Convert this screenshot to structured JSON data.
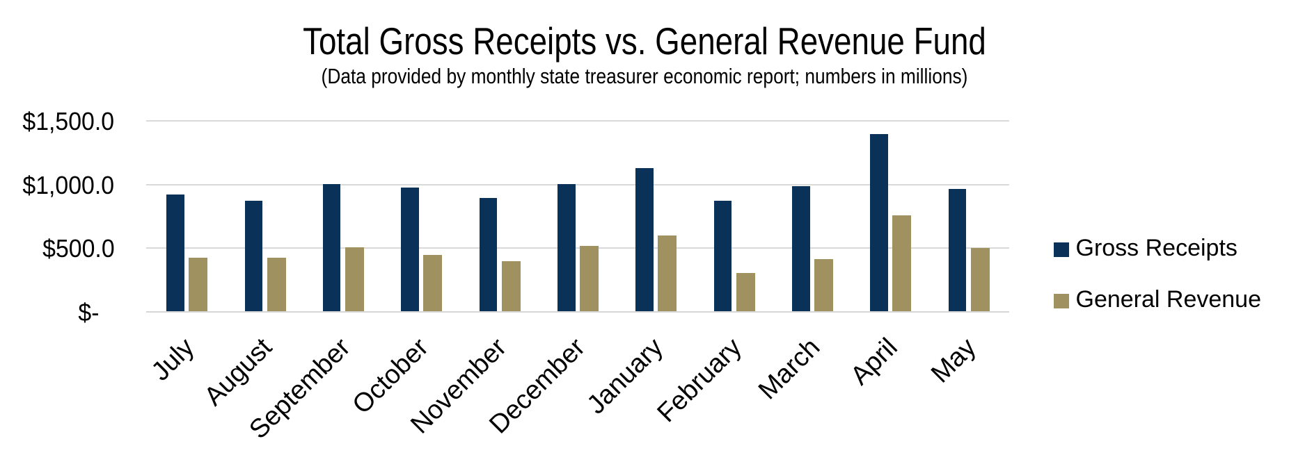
{
  "chart_data": {
    "type": "bar",
    "title": "Total Gross Receipts vs. General Revenue Fund",
    "subtitle": "(Data provided by monthly state treasurer economic report; numbers in millions)",
    "categories": [
      "July",
      "August",
      "September",
      "October",
      "November",
      "December",
      "January",
      "February",
      "March",
      "April",
      "May"
    ],
    "series": [
      {
        "name": "Gross Receipts",
        "color": "#0a3157",
        "values": [
          921,
          873,
          1003,
          973,
          894,
          1003,
          1129,
          873,
          985,
          1397,
          962
        ]
      },
      {
        "name": "General Revenue",
        "color": "#a09161",
        "values": [
          425,
          423,
          507,
          443,
          395,
          514,
          596,
          302,
          412,
          758,
          499
        ]
      }
    ],
    "ylabel": "",
    "xlabel": "",
    "ylim": [
      0,
      1500
    ],
    "ytick_step": 500,
    "ytick_labels": [
      "$-",
      "$500.0",
      "$1,000.0",
      "$1,500.0"
    ],
    "grid": true,
    "legend_position": "right",
    "background": "#ffffff",
    "gridline_color": "#d9d9d9"
  }
}
